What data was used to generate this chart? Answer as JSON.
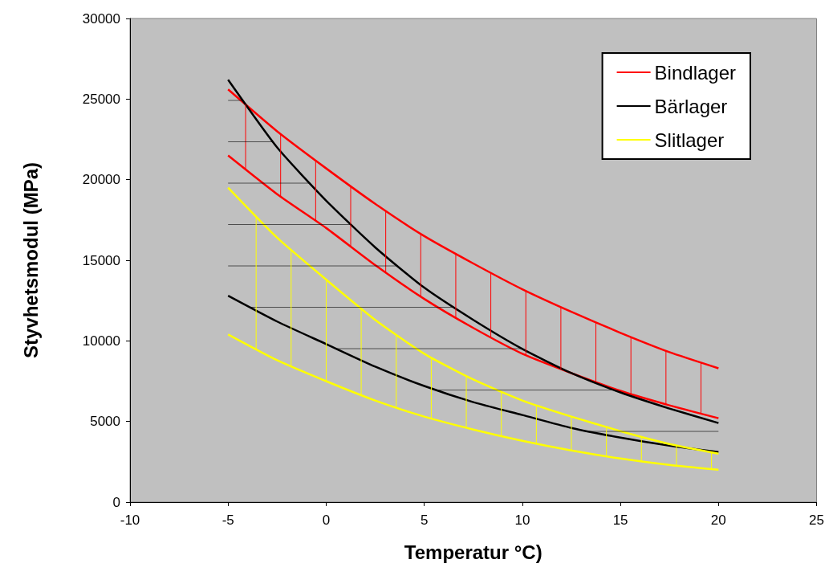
{
  "chart_data": {
    "type": "line",
    "xlabel": "Temperatur °C)",
    "ylabel": "Styvhetsmodul (MPa)",
    "x": [
      -5,
      -2.5,
      0,
      2.5,
      5,
      7.5,
      10,
      12.5,
      15,
      17.5,
      20
    ],
    "xlim": [
      -10,
      25
    ],
    "xticks": [
      -10,
      -5,
      0,
      5,
      10,
      15,
      20,
      25
    ],
    "ylim": [
      0,
      30000
    ],
    "yticks": [
      0,
      5000,
      10000,
      15000,
      20000,
      25000,
      30000
    ],
    "grid": false,
    "legend": "top right",
    "line_style": "solid",
    "marker": "none",
    "series": [
      {
        "name": "Bindlager",
        "color": "#ff0000",
        "values": [
          25600,
          23000,
          20700,
          18500,
          16500,
          14800,
          13200,
          11800,
          10500,
          9300,
          8300
        ]
      },
      {
        "color": "#ff0000",
        "values": [
          21500,
          19100,
          17000,
          14700,
          12600,
          10800,
          9200,
          8000,
          6900,
          6000,
          5200
        ]
      },
      {
        "name": "Bärlager",
        "color": "#000000",
        "values": [
          26200,
          22000,
          18700,
          15800,
          13300,
          11300,
          9500,
          8000,
          6800,
          5800,
          4900
        ]
      },
      {
        "color": "#000000",
        "values": [
          12800,
          11200,
          9800,
          8400,
          7200,
          6200,
          5400,
          4600,
          4000,
          3500,
          3100
        ]
      },
      {
        "name": "Slitlager",
        "color": "#ffff00",
        "values": [
          19500,
          16400,
          13800,
          11300,
          9200,
          7600,
          6300,
          5300,
          4400,
          3600,
          3000
        ]
      },
      {
        "color": "#ffff00",
        "values": [
          10400,
          8800,
          7500,
          6300,
          5300,
          4500,
          3800,
          3200,
          2700,
          2300,
          2000
        ]
      }
    ]
  }
}
